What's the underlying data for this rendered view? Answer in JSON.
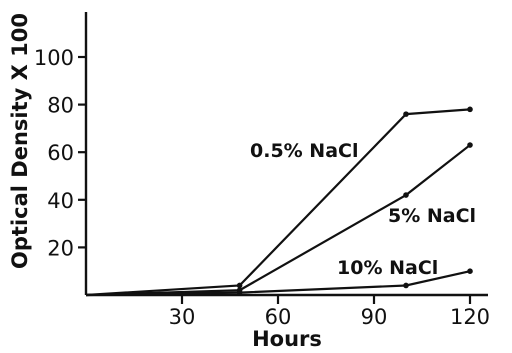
{
  "chart_data": {
    "type": "line",
    "xlabel": "Hours",
    "ylabel": "Optical Density X 100",
    "xlim": [
      0,
      130
    ],
    "ylim": [
      0,
      120
    ],
    "xticks": [
      30,
      60,
      90,
      120
    ],
    "yticks": [
      20,
      40,
      60,
      80,
      100
    ],
    "grid": false,
    "series": [
      {
        "name": "0.5% NaCl",
        "x": [
          0,
          48,
          100,
          120
        ],
        "y": [
          0,
          4,
          76,
          78
        ]
      },
      {
        "name": "5% NaCl",
        "x": [
          0,
          48,
          100,
          120
        ],
        "y": [
          0,
          2,
          42,
          63
        ]
      },
      {
        "name": "10% NaCl",
        "x": [
          0,
          48,
          100,
          120
        ],
        "y": [
          0,
          1,
          4,
          10
        ]
      }
    ]
  }
}
